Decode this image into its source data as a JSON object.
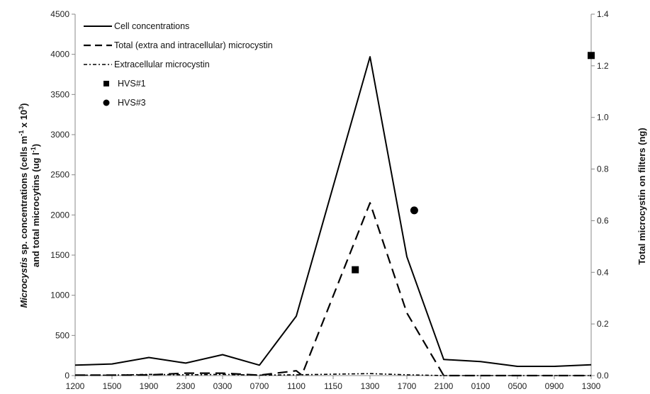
{
  "chart_data": {
    "type": "line",
    "x_categories": [
      "1200",
      "1500",
      "1900",
      "2300",
      "0300",
      "0700",
      "1100",
      "1150",
      "1300",
      "1700",
      "2100",
      "0100",
      "0500",
      "0900",
      "1300"
    ],
    "ylabel_left_line1_italic": "Microcystis",
    "ylabel_left_line1_rest": " sp. concentrations (cells m",
    "ylabel_left_line1_sup1": "-1",
    "ylabel_left_line1_mid": " x 10",
    "ylabel_left_line1_sup2": "3",
    "ylabel_left_line1_end": ")",
    "ylabel_left_line2_start": "and total microcytins (ug l",
    "ylabel_left_line2_sup": "-1",
    "ylabel_left_line2_end": ")",
    "ylabel_right": "Total microcystin on filters (ng)",
    "ylim_left": [
      0,
      4500
    ],
    "yticks_left": [
      "0",
      "500",
      "1000",
      "1500",
      "2000",
      "2500",
      "3000",
      "3500",
      "4000",
      "4500"
    ],
    "ylim_right": [
      0.0,
      1.4
    ],
    "yticks_right": [
      "0.0",
      "0.2",
      "0.4",
      "0.6",
      "0.8",
      "1.0",
      "1.2",
      "1.4"
    ],
    "series": [
      {
        "name": "Cell concentrations",
        "style": "solid",
        "axis": "left",
        "points": [
          [
            0,
            130
          ],
          [
            1,
            145
          ],
          [
            2,
            225
          ],
          [
            3,
            155
          ],
          [
            4,
            260
          ],
          [
            5,
            130
          ],
          [
            6,
            740
          ],
          [
            8,
            3970
          ],
          [
            9,
            1480
          ],
          [
            10,
            200
          ],
          [
            11,
            175
          ],
          [
            12,
            115
          ],
          [
            13,
            115
          ],
          [
            14,
            135
          ]
        ]
      },
      {
        "name": "Total (extra and intracellular) microcystin",
        "style": "dashed",
        "axis": "left",
        "points": [
          [
            0,
            5
          ],
          [
            1,
            5
          ],
          [
            2,
            8
          ],
          [
            3,
            30
          ],
          [
            4,
            30
          ],
          [
            5,
            5
          ],
          [
            6,
            60
          ],
          [
            6.15,
            5
          ],
          [
            8,
            2150
          ],
          [
            9,
            780
          ],
          [
            10,
            0
          ],
          [
            11,
            0
          ],
          [
            12,
            0
          ],
          [
            13,
            0
          ],
          [
            14,
            0
          ]
        ]
      },
      {
        "name": "Extracellular microcystin",
        "style": "dash-dot",
        "axis": "left",
        "points": [
          [
            0,
            5
          ],
          [
            1,
            5
          ],
          [
            2,
            15
          ],
          [
            3,
            10
          ],
          [
            4,
            15
          ],
          [
            5,
            5
          ],
          [
            6,
            10
          ],
          [
            8,
            25
          ],
          [
            9,
            10
          ],
          [
            10,
            0
          ],
          [
            11,
            0
          ],
          [
            12,
            0
          ],
          [
            13,
            0
          ],
          [
            14,
            0
          ]
        ]
      },
      {
        "name": "HVS#1",
        "style": "square-marker",
        "axis": "right",
        "points": [
          [
            7.6,
            0.41
          ],
          [
            14,
            1.24
          ]
        ]
      },
      {
        "name": "HVS#3",
        "style": "circle-marker",
        "axis": "right",
        "points": [
          [
            9.2,
            0.64
          ]
        ]
      }
    ],
    "legend_position": "top-left",
    "grid": false
  }
}
